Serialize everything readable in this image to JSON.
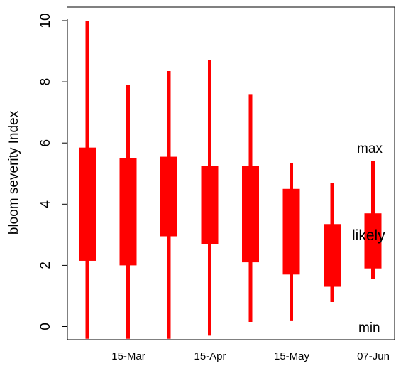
{
  "chart_data": {
    "type": "boxplot",
    "xlabel": "",
    "ylabel": "bloom severity Index",
    "ylim": [
      -0.4,
      10.4
    ],
    "yticks": [
      "0",
      "2",
      "4",
      "6",
      "8",
      "10"
    ],
    "xtick_labels": [
      "15-Mar",
      "15-Apr",
      "15-May",
      "07-Jun"
    ],
    "grid": false,
    "colors": {
      "bars": "#ff0000",
      "axis": "#000000"
    },
    "series": [
      {
        "min": -0.4,
        "q1": 2.15,
        "q3": 5.85,
        "max": 10.0
      },
      {
        "min": -0.4,
        "q1": 2.0,
        "q3": 5.5,
        "max": 7.9
      },
      {
        "min": -0.4,
        "q1": 2.95,
        "q3": 5.55,
        "max": 8.35
      },
      {
        "min": -0.3,
        "q1": 2.7,
        "q3": 5.25,
        "max": 8.7
      },
      {
        "min": 0.15,
        "q1": 2.1,
        "q3": 5.25,
        "max": 7.6
      },
      {
        "min": 0.2,
        "q1": 1.7,
        "q3": 4.5,
        "max": 5.35
      },
      {
        "min": 0.8,
        "q1": 1.3,
        "q3": 3.35,
        "max": 4.7
      },
      {
        "min": 1.55,
        "q1": 1.9,
        "q3": 3.7,
        "max": 5.4
      }
    ],
    "annotations": {
      "max": "max",
      "likely": "likely",
      "min": "min"
    }
  }
}
